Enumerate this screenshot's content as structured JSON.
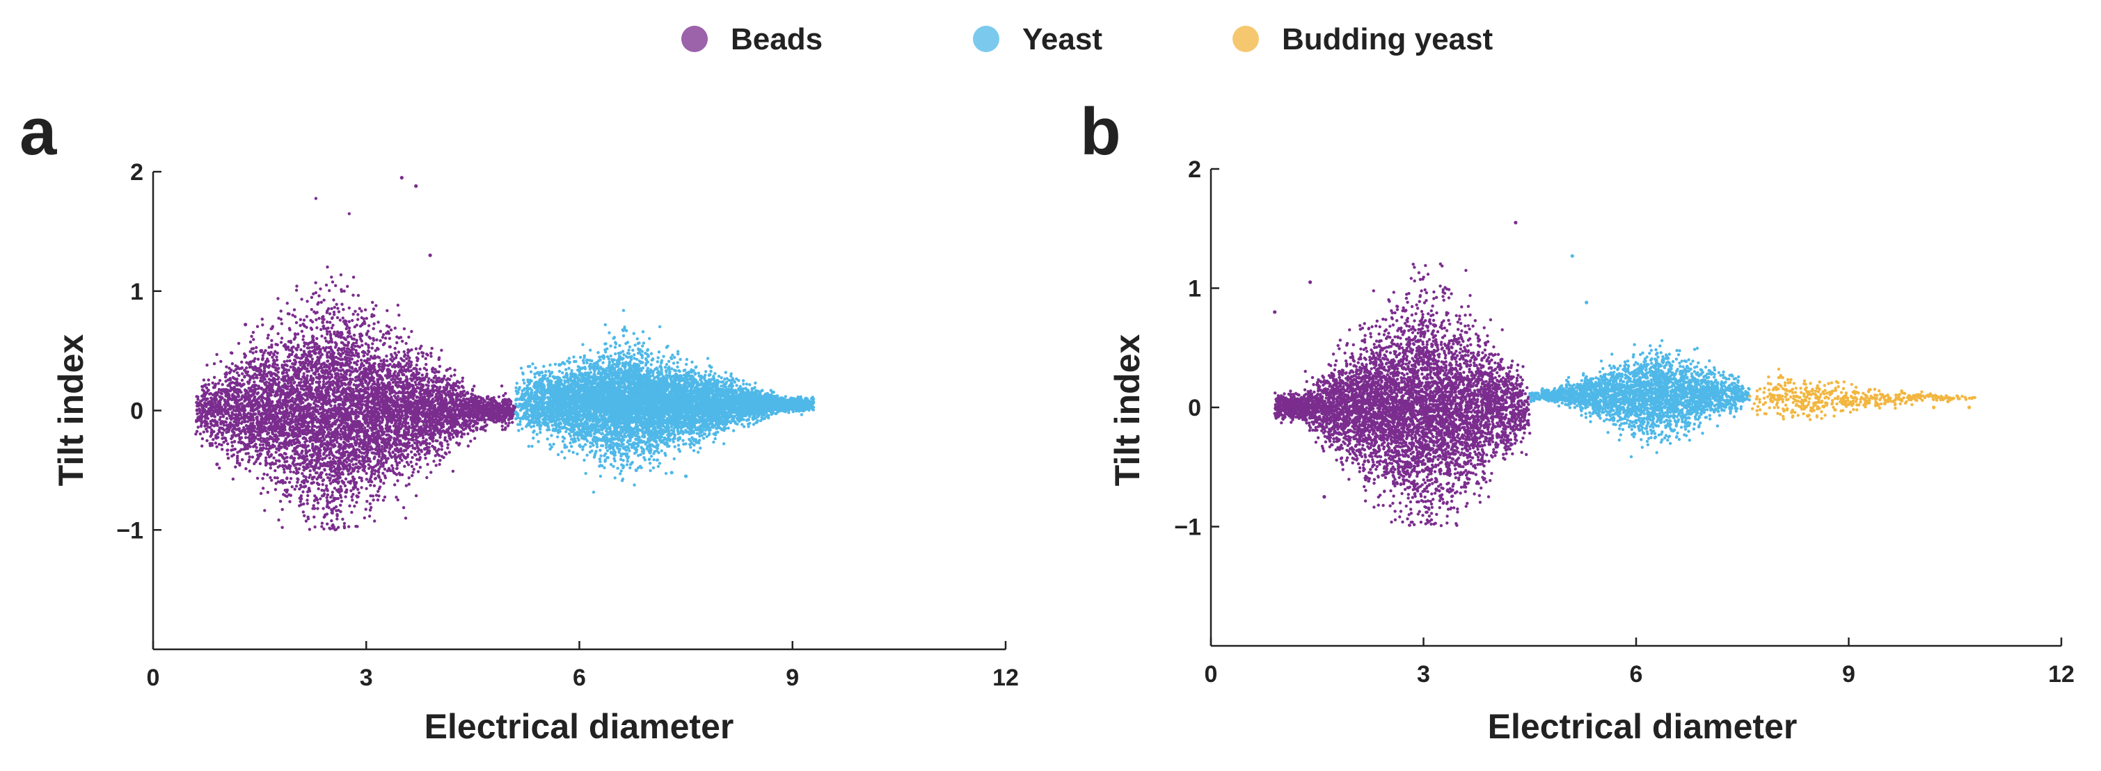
{
  "legend": {
    "placement": "top-center",
    "entries": [
      {
        "name": "Beads",
        "color": "#7b2d8e"
      },
      {
        "name": "Yeast",
        "color": "#4fb8e8"
      },
      {
        "name": "Budding yeast",
        "color": "#f2b640"
      }
    ]
  },
  "chart_data": [
    {
      "type": "scatter",
      "panel_label": "a",
      "xlabel": "Electrical diameter",
      "ylabel": "Tilt index",
      "xlim": [
        0,
        12
      ],
      "ylim": [
        -2,
        2
      ],
      "xticks": [
        0,
        3,
        6,
        9,
        12
      ],
      "yticks": [
        -1,
        0,
        1,
        2
      ],
      "xtick_labels": [
        "0",
        "3",
        "6",
        "9",
        "12"
      ],
      "ytick_labels": [
        "−1",
        "0",
        "1",
        "2"
      ],
      "grid": false,
      "series": [
        {
          "name": "Beads",
          "color": "#7b2d8e",
          "approx_points": 7000,
          "x_range": [
            0.6,
            5.1
          ],
          "x_peak": 2.5,
          "y_center": 0,
          "y_spread_max": 1.0,
          "y_clip": [
            -1,
            2
          ],
          "outliers": [
            [
              0.7,
              0.02
            ],
            [
              0.9,
              0.0
            ],
            [
              1.2,
              0.0
            ],
            [
              1.3,
              0.72
            ],
            [
              0.9,
              -0.45
            ],
            [
              3.7,
              1.88
            ],
            [
              3.5,
              1.95
            ],
            [
              3.9,
              1.3
            ]
          ]
        },
        {
          "name": "Yeast",
          "color": "#4fb8e8",
          "approx_points": 8000,
          "x_range": [
            5.1,
            9.3
          ],
          "x_peak": 6.6,
          "y_center": 0.05,
          "y_spread_max": 0.5,
          "outliers": [
            [
              6.8,
              -0.5
            ],
            [
              7.3,
              -0.52
            ],
            [
              7.5,
              -0.55
            ],
            [
              6.5,
              -0.35
            ]
          ]
        }
      ]
    },
    {
      "type": "scatter",
      "panel_label": "b",
      "xlabel": "Electrical diameter",
      "ylabel": "Tilt index",
      "xlim": [
        0,
        12
      ],
      "ylim": [
        -2,
        2
      ],
      "xticks": [
        0,
        3,
        6,
        9,
        12
      ],
      "yticks": [
        -1,
        0,
        1,
        2
      ],
      "xtick_labels": [
        "0",
        "3",
        "6",
        "9",
        "12"
      ],
      "ytick_labels": [
        "−1",
        "0",
        "1",
        "2"
      ],
      "grid": false,
      "series": [
        {
          "name": "Beads",
          "color": "#7b2d8e",
          "approx_points": 6000,
          "x_range": [
            0.9,
            4.5
          ],
          "x_peak": 3.0,
          "y_center": 0,
          "y_spread_max": 1.0,
          "y_clip": [
            -1,
            2
          ],
          "outliers": [
            [
              0.9,
              0.8
            ],
            [
              1.4,
              1.05
            ],
            [
              1.1,
              0.05
            ],
            [
              1.3,
              0.02
            ],
            [
              1.6,
              -0.75
            ],
            [
              4.3,
              1.55
            ]
          ]
        },
        {
          "name": "Yeast",
          "color": "#4fb8e8",
          "approx_points": 3000,
          "x_range": [
            4.5,
            7.6
          ],
          "x_peak": 6.3,
          "y_center": 0.1,
          "y_spread_max": 0.4,
          "outliers": [
            [
              5.1,
              1.27
            ],
            [
              5.3,
              0.88
            ]
          ]
        },
        {
          "name": "Budding yeast",
          "color": "#f2b640",
          "approx_points": 500,
          "x_range": [
            7.6,
            10.8
          ],
          "x_peak": 8.0,
          "y_center": 0.08,
          "y_spread_max": 0.22,
          "outliers": [
            [
              10.2,
              0.0
            ],
            [
              10.7,
              0.0
            ],
            [
              9.9,
              0.08
            ],
            [
              10.4,
              0.05
            ]
          ]
        }
      ]
    }
  ]
}
